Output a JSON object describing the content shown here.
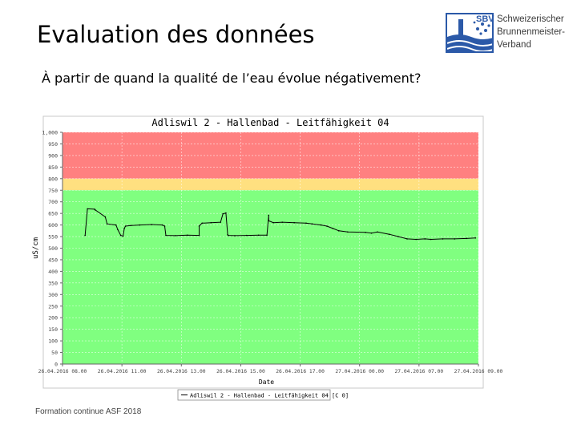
{
  "slide": {
    "title": "Evaluation des données",
    "subtitle": "À partir de quand la qualité de l’eau évolue négativement?",
    "footer": "Formation continue ASF 2018"
  },
  "logo": {
    "abbr": "SBV",
    "lines": [
      "Schweizerischer",
      "Brunnenmeister-",
      "Verband"
    ],
    "icon": "water-drops-logo-icon"
  },
  "chart_data": {
    "type": "line",
    "title": "Adliswil 2 - Hallenbad - Leitfähigkeit 04",
    "xlabel": "Date",
    "ylabel": "uS/cm",
    "ylim": [
      0,
      1000
    ],
    "yticks": [
      0,
      50,
      100,
      150,
      200,
      250,
      300,
      350,
      400,
      450,
      500,
      550,
      600,
      650,
      700,
      750,
      800,
      850,
      900,
      950,
      1000
    ],
    "ytick_labels": [
      "0",
      "50",
      "100",
      "150",
      "200",
      "250",
      "300",
      "350",
      "400",
      "450",
      "500",
      "550",
      "600",
      "650",
      "700",
      "750",
      "800",
      "850",
      "900",
      "950",
      "1,000"
    ],
    "xlim": [
      0,
      7
    ],
    "x_tick_labels": [
      "26.04.2016 08.00",
      "26.04.2016 11.00",
      "26.04.2016 13.00",
      "26.04.2016 15.00",
      "26.04.2016 17.00",
      "27.04.2016 00.00",
      "27.04.2016 07.00",
      "27.04.2016 09.00"
    ],
    "x_tick_positions": [
      0,
      1,
      2,
      3,
      4,
      5,
      6,
      7
    ],
    "grid": true,
    "bands": [
      {
        "from": 800,
        "to": 1000,
        "color": "#ff8080"
      },
      {
        "from": 750,
        "to": 800,
        "color": "#ffe080"
      },
      {
        "from": 0,
        "to": 750,
        "color": "#80ff80"
      }
    ],
    "legend_position": "bottom",
    "series": [
      {
        "name": "Adliswil 2 - Hallenbad - Leitfähigkeit 04 [C 0]",
        "color": "#000000",
        "x": [
          0.38,
          0.42,
          0.54,
          0.55,
          0.72,
          0.75,
          0.9,
          0.93,
          0.98,
          1.02,
          1.04,
          1.06,
          1.15,
          1.3,
          1.5,
          1.68,
          1.72,
          1.74,
          1.9,
          2.1,
          2.3,
          2.3,
          2.35,
          2.5,
          2.66,
          2.7,
          2.75,
          2.78,
          2.79,
          2.9,
          3.1,
          3.3,
          3.44,
          3.47,
          3.47,
          3.55,
          3.7,
          3.9,
          4.1,
          4.2,
          4.35,
          4.45,
          4.55,
          4.65,
          4.8,
          5.1,
          5.2,
          5.3,
          5.5,
          5.65,
          5.8,
          5.95,
          6.1,
          6.2,
          6.4,
          6.6,
          6.8,
          6.95
        ],
        "y": [
          555,
          670,
          668,
          665,
          635,
          605,
          600,
          580,
          555,
          552,
          585,
          595,
          598,
          600,
          602,
          600,
          595,
          555,
          554,
          556,
          555,
          595,
          608,
          610,
          612,
          648,
          652,
          558,
          555,
          554,
          555,
          556,
          556,
          642,
          618,
          610,
          612,
          610,
          608,
          605,
          600,
          595,
          585,
          575,
          570,
          568,
          565,
          570,
          560,
          550,
          540,
          538,
          540,
          538,
          540,
          540,
          542,
          544
        ]
      }
    ]
  }
}
